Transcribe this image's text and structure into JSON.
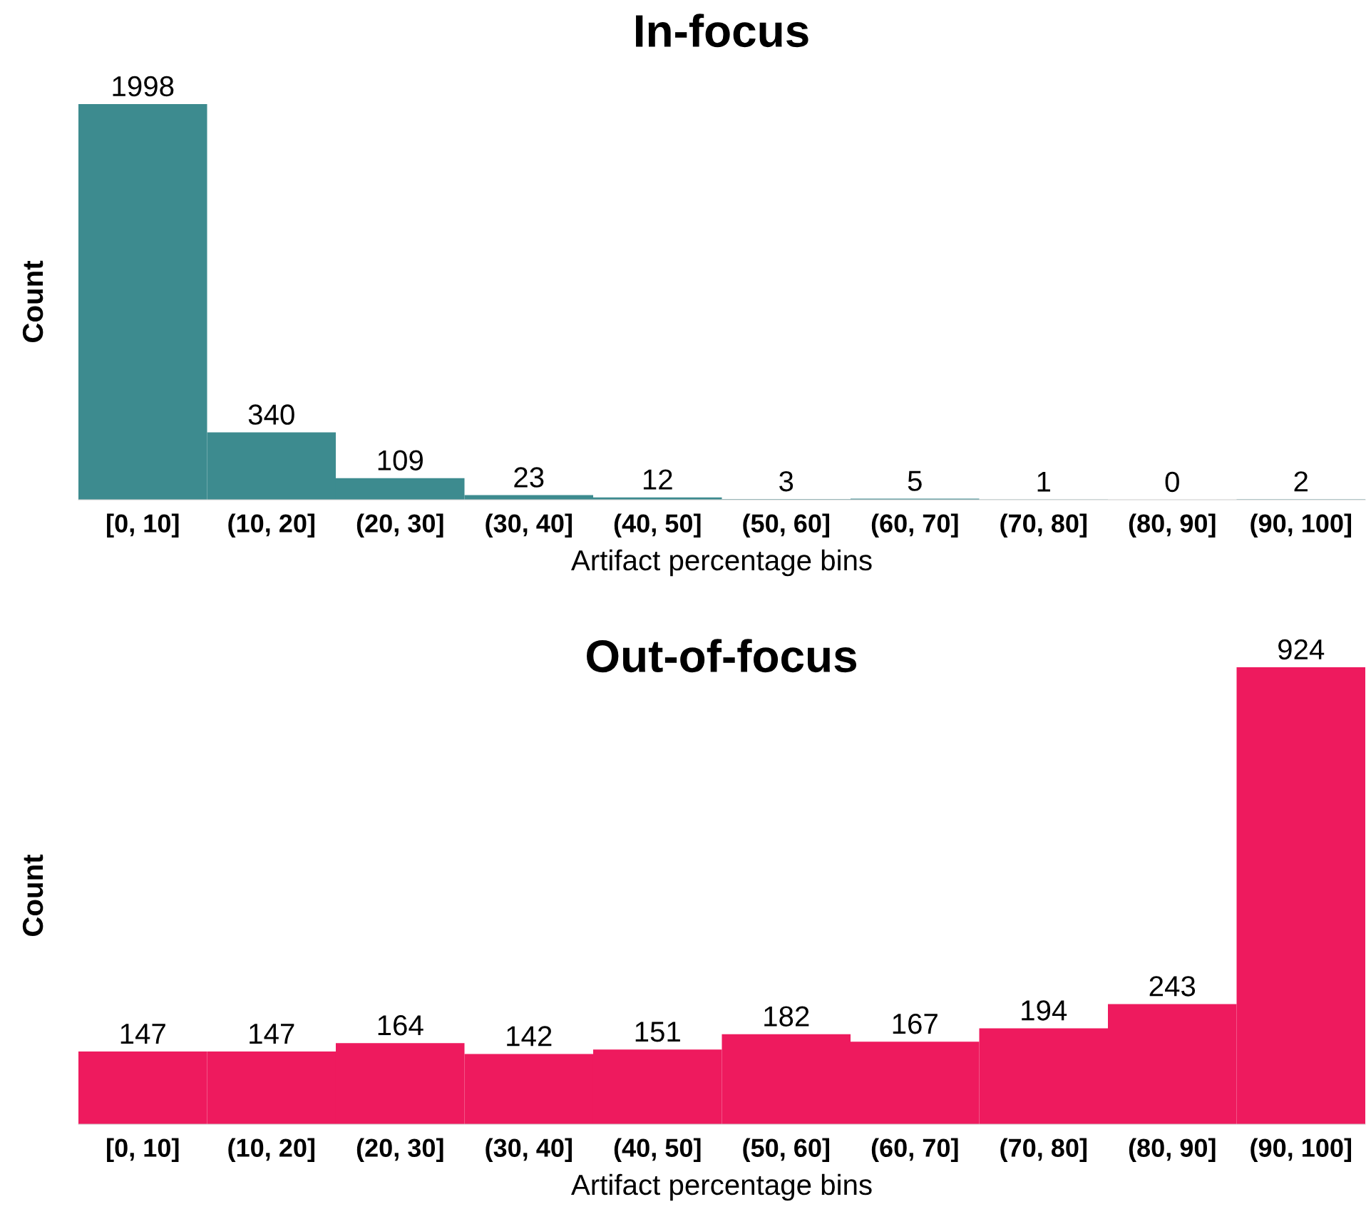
{
  "chart_data": [
    {
      "type": "bar",
      "title": "In-focus",
      "xlabel": "Artifact percentage bins",
      "ylabel": "Count",
      "categories": [
        "[0, 10]",
        "(10, 20]",
        "(20, 30]",
        "(30, 40]",
        "(40, 50]",
        "(50, 60]",
        "(60, 70]",
        "(70, 80]",
        "(80, 90]",
        "(90, 100]"
      ],
      "values": [
        1998,
        340,
        109,
        23,
        12,
        3,
        5,
        1,
        0,
        2
      ],
      "color": "#3d8b8f",
      "data_labels": true,
      "tick_labels": "x",
      "grid": false,
      "legend": false
    },
    {
      "type": "bar",
      "title": "Out-of-focus",
      "xlabel": "Artifact percentage bins",
      "ylabel": "Count",
      "categories": [
        "[0, 10]",
        "(10, 20]",
        "(20, 30]",
        "(30, 40]",
        "(40, 50]",
        "(50, 60]",
        "(60, 70]",
        "(70, 80]",
        "(80, 90]",
        "(90, 100]"
      ],
      "values": [
        147,
        147,
        164,
        142,
        151,
        182,
        167,
        194,
        243,
        924
      ],
      "color": "#ee1a5e",
      "data_labels": true,
      "tick_labels": "x",
      "grid": false,
      "legend": false
    }
  ]
}
